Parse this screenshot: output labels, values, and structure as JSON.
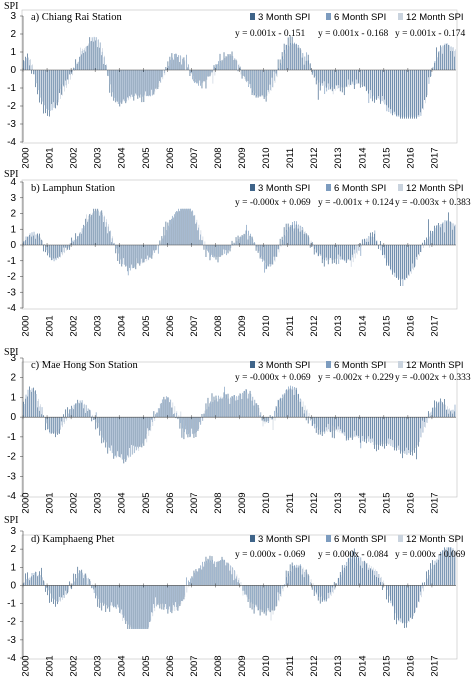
{
  "chart_data": [
    {
      "type": "bar",
      "title": "a) Chiang Rai Station",
      "ylabel": "SPI",
      "ylim": [
        -4,
        3
      ],
      "yticks": [
        3,
        2,
        1,
        0,
        -1,
        -2,
        -3,
        -4
      ],
      "xlim": [
        2000,
        2018
      ],
      "xticks": [
        "2000",
        "2001",
        "2002",
        "2003",
        "2004",
        "2005",
        "2006",
        "2007",
        "2008",
        "2009",
        "2010",
        "2011",
        "2012",
        "2013",
        "2014",
        "2015",
        "2016",
        "2017"
      ],
      "legend_placement": "top-right",
      "colors": [
        "#3f6489",
        "#7d9cbf",
        "#c9d3de"
      ],
      "series": [
        {
          "name": "3 Month SPI",
          "trend": "y = 0.001x - 0.151",
          "amplitude": 1.9,
          "seed": 11
        },
        {
          "name": "6 Month SPI",
          "trend": "y = 0.001x - 0.168",
          "amplitude": 1.8,
          "seed": 12
        },
        {
          "name": "12 Month SPI",
          "trend": "y = 0.001x - 0.174",
          "amplitude": 1.7,
          "seed": 13
        }
      ],
      "events": [
        {
          "center": 2000.2,
          "width": 0.4,
          "value": 1.4
        },
        {
          "center": 2000.7,
          "width": 0.5,
          "value": -1.5
        },
        {
          "center": 2001.3,
          "width": 0.6,
          "value": -1.6
        },
        {
          "center": 2002.5,
          "width": 0.5,
          "value": 0.8
        },
        {
          "center": 2003.1,
          "width": 0.5,
          "value": 1.8
        },
        {
          "center": 2003.7,
          "width": 0.5,
          "value": -1.2
        },
        {
          "center": 2004.3,
          "width": 0.7,
          "value": -1.3
        },
        {
          "center": 2005.3,
          "width": 0.6,
          "value": -1.2
        },
        {
          "center": 2006.4,
          "width": 0.6,
          "value": 1.0
        },
        {
          "center": 2007.2,
          "width": 0.5,
          "value": -1.0
        },
        {
          "center": 2008.6,
          "width": 0.6,
          "value": 1.0
        },
        {
          "center": 2009.6,
          "width": 0.7,
          "value": -1.4
        },
        {
          "center": 2010.3,
          "width": 0.5,
          "value": -1.4
        },
        {
          "center": 2011.0,
          "width": 0.9,
          "value": 1.7
        },
        {
          "center": 2012.3,
          "width": 0.6,
          "value": -1.0
        },
        {
          "center": 2013.3,
          "width": 0.6,
          "value": -0.9
        },
        {
          "center": 2014.5,
          "width": 0.6,
          "value": -1.0
        },
        {
          "center": 2015.7,
          "width": 0.9,
          "value": -2.6
        },
        {
          "center": 2016.4,
          "width": 0.5,
          "value": -1.8
        },
        {
          "center": 2017.5,
          "width": 0.8,
          "value": 1.5
        }
      ]
    },
    {
      "type": "bar",
      "title": "b) Lamphun Station",
      "ylabel": "SPI",
      "ylim": [
        -4,
        4
      ],
      "yticks": [
        4,
        3,
        2,
        1,
        0,
        -1,
        -2,
        -3,
        -4
      ],
      "xlim": [
        2000,
        2018
      ],
      "xticks": [
        "2000",
        "2001",
        "2002",
        "2003",
        "2004",
        "2005",
        "2006",
        "2007",
        "2008",
        "2009",
        "2010",
        "2011",
        "2012",
        "2013",
        "2014",
        "2015",
        "2016",
        "2017"
      ],
      "legend_placement": "top-right",
      "colors": [
        "#3f6489",
        "#7d9cbf",
        "#c9d3de"
      ],
      "series": [
        {
          "name": "3 Month SPI",
          "trend": "y = -0.000x + 0.069",
          "amplitude": 1.8,
          "seed": 21
        },
        {
          "name": "6 Month SPI",
          "trend": "y = -0.001x + 0.124",
          "amplitude": 1.8,
          "seed": 22
        },
        {
          "name": "12 Month SPI",
          "trend": "y = -0.003x + 0.383",
          "amplitude": 1.7,
          "seed": 23
        }
      ],
      "events": [
        {
          "center": 2000.5,
          "width": 0.6,
          "value": 0.9
        },
        {
          "center": 2001.2,
          "width": 0.5,
          "value": -1.2
        },
        {
          "center": 2003.2,
          "width": 0.8,
          "value": 2.7
        },
        {
          "center": 2004.0,
          "width": 0.7,
          "value": -2.0
        },
        {
          "center": 2005.1,
          "width": 0.6,
          "value": -0.9
        },
        {
          "center": 2006.3,
          "width": 0.7,
          "value": 1.4
        },
        {
          "center": 2006.9,
          "width": 0.6,
          "value": 2.0
        },
        {
          "center": 2007.8,
          "width": 0.7,
          "value": -1.0
        },
        {
          "center": 2009.3,
          "width": 0.6,
          "value": 0.9
        },
        {
          "center": 2010.2,
          "width": 0.6,
          "value": -2.0
        },
        {
          "center": 2011.1,
          "width": 0.8,
          "value": 1.6
        },
        {
          "center": 2012.5,
          "width": 0.6,
          "value": -1.0
        },
        {
          "center": 2013.6,
          "width": 0.6,
          "value": -1.1
        },
        {
          "center": 2014.3,
          "width": 0.6,
          "value": 1.0
        },
        {
          "center": 2015.8,
          "width": 0.9,
          "value": -2.4
        },
        {
          "center": 2016.6,
          "width": 0.6,
          "value": 0.9
        },
        {
          "center": 2017.6,
          "width": 0.7,
          "value": 1.5
        }
      ]
    },
    {
      "type": "bar",
      "title": "c) Mae Hong Son Station",
      "ylabel": "SPI",
      "ylim": [
        -4,
        3
      ],
      "yticks": [
        3,
        2,
        1,
        0,
        -1,
        -2,
        -3,
        -4
      ],
      "xlim": [
        2000,
        2018
      ],
      "xticks": [
        "2000",
        "2001",
        "2002",
        "2003",
        "2004",
        "2005",
        "2006",
        "2007",
        "2008",
        "2009",
        "2010",
        "2011",
        "2012",
        "2013",
        "2014",
        "2015",
        "2016",
        "2017"
      ],
      "legend_placement": "top-right",
      "colors": [
        "#3f6489",
        "#7d9cbf",
        "#c9d3de"
      ],
      "series": [
        {
          "name": "3 Month SPI",
          "trend": "y = -0.000x + 0.069",
          "amplitude": 1.6,
          "seed": 31
        },
        {
          "name": "6 Month SPI",
          "trend": "y = -0.002x + 0.229",
          "amplitude": 1.6,
          "seed": 32
        },
        {
          "name": "12 Month SPI",
          "trend": "y = -0.002x + 0.333",
          "amplitude": 1.5,
          "seed": 33
        }
      ],
      "events": [
        {
          "center": 2000.3,
          "width": 0.5,
          "value": 1.6
        },
        {
          "center": 2001.2,
          "width": 0.6,
          "value": -1.0
        },
        {
          "center": 2002.3,
          "width": 0.6,
          "value": 0.9
        },
        {
          "center": 2003.6,
          "width": 0.7,
          "value": -1.3
        },
        {
          "center": 2004.3,
          "width": 0.6,
          "value": -1.5
        },
        {
          "center": 2005.2,
          "width": 0.6,
          "value": -1.0
        },
        {
          "center": 2005.8,
          "width": 0.6,
          "value": 1.4
        },
        {
          "center": 2006.9,
          "width": 0.6,
          "value": -1.0
        },
        {
          "center": 2008.0,
          "width": 0.6,
          "value": 1.0
        },
        {
          "center": 2009.4,
          "width": 0.8,
          "value": 1.5
        },
        {
          "center": 2010.1,
          "width": 0.6,
          "value": -1.7
        },
        {
          "center": 2010.9,
          "width": 0.9,
          "value": 1.7
        },
        {
          "center": 2012.3,
          "width": 0.6,
          "value": -0.9
        },
        {
          "center": 2013.5,
          "width": 0.6,
          "value": -1.0
        },
        {
          "center": 2014.6,
          "width": 0.6,
          "value": -1.2
        },
        {
          "center": 2015.9,
          "width": 0.8,
          "value": -1.9
        },
        {
          "center": 2017.2,
          "width": 0.6,
          "value": 0.8
        }
      ]
    },
    {
      "type": "bar",
      "title": "d) Kamphaeng Phet",
      "ylabel": "SPI",
      "ylim": [
        -4,
        3
      ],
      "yticks": [
        3,
        2,
        1,
        0,
        -1,
        -2,
        -3,
        -4
      ],
      "xlim": [
        2000,
        2018
      ],
      "xticks": [
        "2000",
        "2001",
        "2002",
        "2003",
        "2004",
        "2005",
        "2006",
        "2007",
        "2008",
        "2009",
        "2010",
        "2011",
        "2012",
        "2013",
        "2014",
        "2015",
        "2016",
        "2017"
      ],
      "legend_placement": "top-right",
      "colors": [
        "#3f6489",
        "#7d9cbf",
        "#c9d3de"
      ],
      "series": [
        {
          "name": "3 Month SPI",
          "trend": "y = 0.000x - 0.069",
          "amplitude": 1.6,
          "seed": 41
        },
        {
          "name": "6 Month SPI",
          "trend": "y = 0.000x - 0.084",
          "amplitude": 1.6,
          "seed": 42
        },
        {
          "name": "12 Month SPI",
          "trend": "y = 0.000x - 0.069",
          "amplitude": 1.5,
          "seed": 43
        }
      ],
      "events": [
        {
          "center": 2000.6,
          "width": 0.6,
          "value": 0.9
        },
        {
          "center": 2001.3,
          "width": 0.6,
          "value": -1.2
        },
        {
          "center": 2002.5,
          "width": 0.6,
          "value": 1.0
        },
        {
          "center": 2003.2,
          "width": 0.6,
          "value": -1.2
        },
        {
          "center": 2004.3,
          "width": 0.6,
          "value": -1.4
        },
        {
          "center": 2004.9,
          "width": 0.5,
          "value": -2.7
        },
        {
          "center": 2006.2,
          "width": 0.6,
          "value": -1.5
        },
        {
          "center": 2007.3,
          "width": 0.6,
          "value": 0.9
        },
        {
          "center": 2008.3,
          "width": 0.8,
          "value": 1.3
        },
        {
          "center": 2009.5,
          "width": 0.6,
          "value": -1.1
        },
        {
          "center": 2010.4,
          "width": 0.6,
          "value": -1.6
        },
        {
          "center": 2011.2,
          "width": 0.8,
          "value": 1.4
        },
        {
          "center": 2012.5,
          "width": 0.6,
          "value": -1.0
        },
        {
          "center": 2013.7,
          "width": 0.7,
          "value": 1.6
        },
        {
          "center": 2014.8,
          "width": 0.6,
          "value": 1.0
        },
        {
          "center": 2015.8,
          "width": 0.9,
          "value": -2.3
        },
        {
          "center": 2016.8,
          "width": 0.6,
          "value": 1.0
        },
        {
          "center": 2017.7,
          "width": 0.6,
          "value": 2.2
        }
      ]
    }
  ]
}
